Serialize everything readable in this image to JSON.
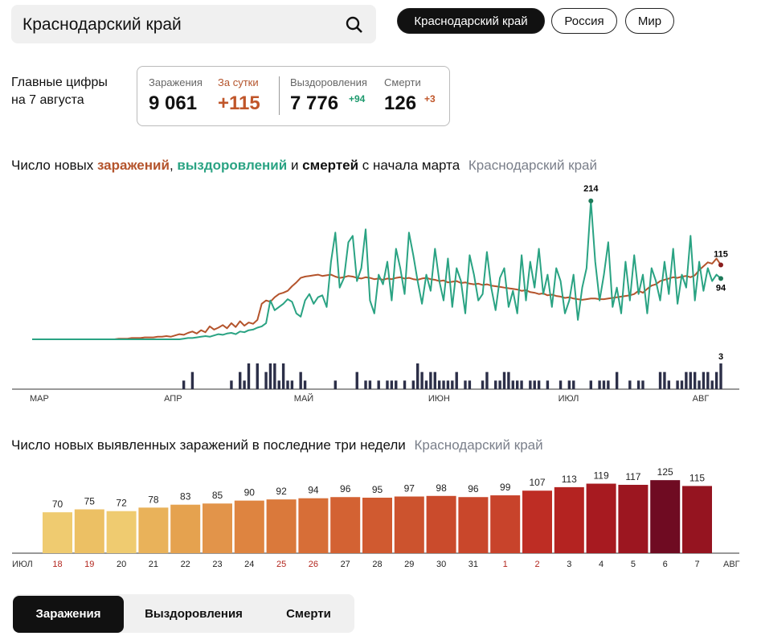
{
  "search": "Краснодарский край",
  "regions": [
    "Краснодарский край",
    "Россия",
    "Мир"
  ],
  "summary": {
    "caption": [
      "Главные цифры",
      "на 7 августа"
    ],
    "items": [
      {
        "label": "Заражения",
        "value": "9 061"
      },
      {
        "label": "За сутки",
        "value": "+115"
      },
      {
        "label": "Выздоровления",
        "value": "7 776",
        "delta": "+94"
      },
      {
        "label": "Смерти",
        "value": "126",
        "delta": "+3"
      }
    ]
  },
  "tabs": [
    "Заражения",
    "Выздоровления",
    "Смерти"
  ],
  "chart_data": [
    {
      "type": "line",
      "title": [
        "Число новых",
        "заражений",
        ",",
        "выздоровлений",
        "и",
        "смертей",
        "с начала марта"
      ],
      "subtitle": "Краснодарский край",
      "categories": [
        "МАР",
        null,
        null,
        null,
        null,
        null,
        null,
        null,
        null,
        null,
        null,
        null,
        null,
        null,
        null,
        null,
        null,
        null,
        null,
        null,
        null,
        null,
        null,
        null,
        null,
        null,
        null,
        null,
        null,
        null,
        null,
        "АПР",
        null,
        null,
        null,
        null,
        null,
        null,
        null,
        null,
        null,
        null,
        null,
        null,
        null,
        null,
        null,
        null,
        null,
        null,
        null,
        null,
        null,
        null,
        null,
        null,
        null,
        null,
        null,
        null,
        null,
        "МАЙ",
        null,
        null,
        null,
        null,
        null,
        null,
        null,
        null,
        null,
        null,
        null,
        null,
        null,
        null,
        null,
        null,
        null,
        null,
        null,
        null,
        null,
        null,
        null,
        null,
        null,
        null,
        null,
        null,
        null,
        null,
        "ИЮН",
        null,
        null,
        null,
        null,
        null,
        null,
        null,
        null,
        null,
        null,
        null,
        null,
        null,
        null,
        null,
        null,
        null,
        null,
        null,
        null,
        null,
        null,
        null,
        null,
        null,
        null,
        null,
        null,
        null,
        "ИЮЛ",
        null,
        null,
        null,
        null,
        null,
        null,
        null,
        null,
        null,
        null,
        null,
        null,
        null,
        null,
        null,
        null,
        null,
        null,
        null,
        null,
        null,
        null,
        null,
        null,
        null,
        null,
        null,
        null,
        null,
        null,
        "АВГ",
        null,
        null,
        null,
        null,
        null,
        null
      ],
      "ylim": [
        0,
        230
      ],
      "y2lim": [
        0,
        3
      ],
      "series": [
        {
          "name": "заражений",
          "color": "#b4542c",
          "values": [
            0,
            0,
            0,
            0,
            0,
            0,
            0,
            0,
            0,
            0,
            0,
            0,
            0,
            0,
            0,
            0,
            0,
            0,
            0,
            0,
            1,
            1,
            1,
            2,
            2,
            2,
            3,
            3,
            3,
            4,
            4,
            5,
            4,
            6,
            8,
            7,
            10,
            12,
            9,
            14,
            11,
            20,
            15,
            18,
            22,
            17,
            25,
            19,
            28,
            21,
            26,
            24,
            30,
            55,
            60,
            58,
            65,
            70,
            72,
            75,
            82,
            88,
            95,
            97,
            98,
            99,
            100,
            98,
            99,
            100,
            97,
            95,
            96,
            98,
            97,
            95,
            94,
            96,
            95,
            93,
            94,
            92,
            94,
            93,
            95,
            96,
            94,
            95,
            93,
            92,
            94,
            95,
            93,
            92,
            90,
            91,
            88,
            89,
            90,
            87,
            88,
            86,
            85,
            86,
            84,
            85,
            83,
            82,
            81,
            80,
            79,
            78,
            77,
            75,
            76,
            73,
            72,
            70,
            71,
            68,
            69,
            67,
            66,
            64,
            65,
            63,
            62,
            61,
            62,
            63,
            63,
            62,
            62,
            63,
            64,
            65,
            66,
            67,
            68,
            70,
            75,
            72,
            78,
            83,
            85,
            90,
            92,
            94,
            96,
            95,
            97,
            98,
            96,
            99,
            107,
            113,
            119,
            117,
            125,
            115
          ]
        },
        {
          "name": "выздоровлений",
          "color": "#2aa383",
          "values": [
            0,
            0,
            0,
            0,
            0,
            0,
            0,
            0,
            0,
            0,
            0,
            0,
            0,
            0,
            0,
            0,
            0,
            0,
            0,
            0,
            0,
            0,
            0,
            0,
            0,
            0,
            0,
            0,
            0,
            0,
            0,
            0,
            0,
            0,
            0,
            1,
            2,
            2,
            3,
            4,
            5,
            4,
            6,
            8,
            7,
            9,
            10,
            8,
            12,
            11,
            14,
            15,
            18,
            20,
            25,
            60,
            45,
            50,
            55,
            62,
            58,
            40,
            35,
            60,
            70,
            55,
            65,
            68,
            50,
            120,
            165,
            80,
            95,
            150,
            160,
            90,
            110,
            170,
            60,
            40,
            100,
            85,
            120,
            60,
            140,
            110,
            70,
            165,
            130,
            90,
            55,
            100,
            75,
            140,
            90,
            60,
            125,
            50,
            110,
            90,
            40,
            130,
            100,
            60,
            70,
            135,
            80,
            45,
            95,
            110,
            50,
            75,
            40,
            130,
            60,
            120,
            80,
            140,
            70,
            100,
            50,
            110,
            90,
            40,
            60,
            100,
            30,
            80,
            110,
            214,
            120,
            60,
            100,
            150,
            50,
            80,
            40,
            120,
            60,
            130,
            70,
            100,
            40,
            110,
            90,
            60,
            120,
            70,
            140,
            55,
            100,
            80,
            160,
            60,
            120,
            75,
            110,
            90,
            100,
            94
          ]
        },
        {
          "name": "смертей",
          "color": "#2c2f48",
          "axis": "y2",
          "values": [
            0,
            0,
            0,
            0,
            0,
            0,
            0,
            0,
            0,
            0,
            0,
            0,
            0,
            0,
            0,
            0,
            0,
            0,
            0,
            0,
            0,
            0,
            0,
            0,
            0,
            0,
            0,
            0,
            0,
            0,
            0,
            0,
            0,
            0,
            0,
            1,
            0,
            2,
            0,
            0,
            0,
            0,
            0,
            0,
            0,
            0,
            1,
            0,
            2,
            1,
            3,
            0,
            3,
            0,
            2,
            3,
            3,
            1,
            3,
            1,
            1,
            0,
            2,
            1,
            0,
            0,
            0,
            0,
            0,
            0,
            1,
            0,
            0,
            0,
            0,
            2,
            0,
            1,
            1,
            0,
            1,
            0,
            1,
            1,
            1,
            0,
            1,
            0,
            1,
            3,
            2,
            1,
            2,
            2,
            1,
            1,
            1,
            1,
            2,
            0,
            1,
            1,
            0,
            0,
            1,
            2,
            0,
            1,
            1,
            2,
            2,
            1,
            1,
            1,
            0,
            1,
            1,
            1,
            0,
            1,
            0,
            0,
            1,
            0,
            1,
            1,
            0,
            0,
            0,
            1,
            0,
            1,
            1,
            1,
            0,
            2,
            0,
            0,
            1,
            0,
            1,
            1,
            0,
            0,
            0,
            2,
            2,
            1,
            0,
            1,
            1,
            2,
            2,
            2,
            1,
            2,
            2,
            1,
            2,
            3
          ]
        }
      ]
    },
    {
      "type": "bar",
      "title": "Число новых выявленных заражений в последние три недели",
      "subtitle": "Краснодарский край",
      "axis_labels": [
        "ИЮЛ",
        "АВГ"
      ],
      "categories": [
        "18",
        "19",
        "20",
        "21",
        "22",
        "23",
        "24",
        "25",
        "26",
        "27",
        "28",
        "29",
        "30",
        "31",
        "1",
        "2",
        "3",
        "4",
        "5",
        "6",
        "7"
      ],
      "values": [
        70,
        75,
        72,
        78,
        83,
        85,
        90,
        92,
        94,
        96,
        95,
        97,
        98,
        96,
        99,
        107,
        113,
        119,
        117,
        125,
        115
      ],
      "colors": [
        "#efcb70",
        "#ecc064",
        "#efcb70",
        "#e9b25a",
        "#e5a24f",
        "#e2944a",
        "#de8440",
        "#da793b",
        "#d76e37",
        "#d36233",
        "#d05a30",
        "#cc532e",
        "#ca4b2c",
        "#c9472b",
        "#c8432b",
        "#be2d24",
        "#b42321",
        "#a71a20",
        "#9c1620",
        "#6f0b22",
        "#951420"
      ],
      "category_label_colors": [
        "#b3261e",
        "#b3261e",
        "#222",
        "#222",
        "#222",
        "#222",
        "#222",
        "#b3261e",
        "#b3261e",
        "#222",
        "#222",
        "#222",
        "#222",
        "#222",
        "#b3261e",
        "#b3261e",
        "#222",
        "#222",
        "#222",
        "#222",
        "#222"
      ],
      "ylim": [
        0,
        150
      ]
    }
  ]
}
